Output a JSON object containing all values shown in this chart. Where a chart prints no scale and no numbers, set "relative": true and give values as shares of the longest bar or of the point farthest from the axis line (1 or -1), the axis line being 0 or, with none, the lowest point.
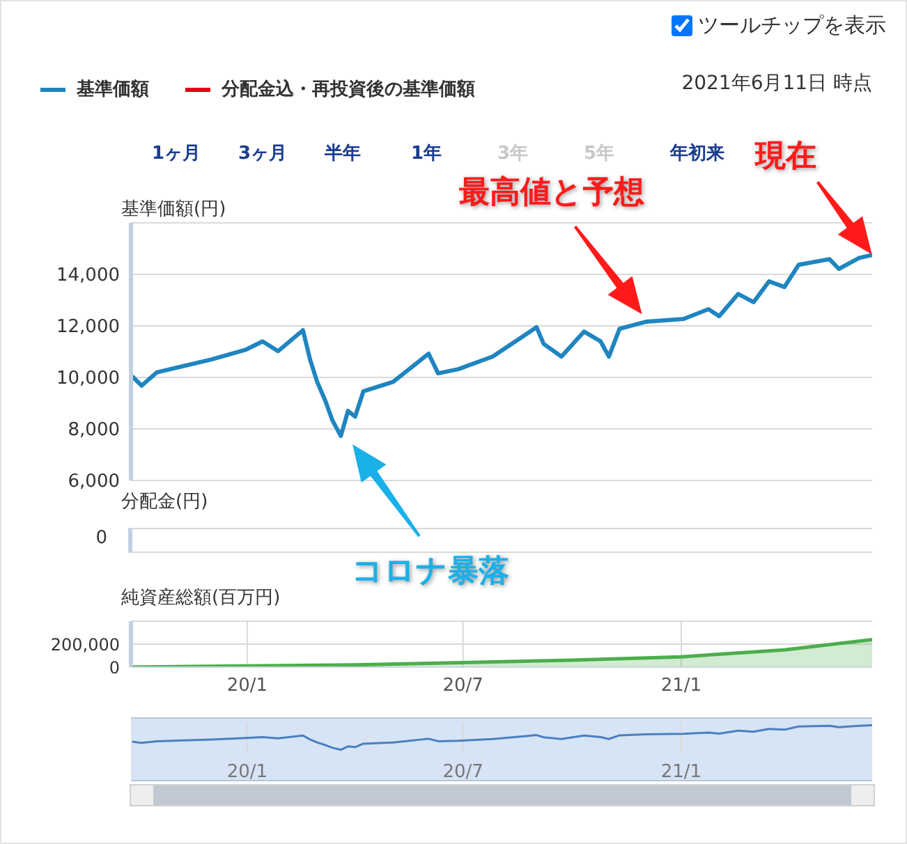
{
  "chart_data": [
    {
      "type": "line",
      "ylabel": "基準価額(円)",
      "legend": "top left",
      "grid": true,
      "tick_labels": "y",
      "x": [
        "2019-09-26",
        "2019-10-04",
        "2019-10-17",
        "2019-12-02",
        "2019-12-31",
        "2020-01-14",
        "2020-01-27",
        "2020-02-17",
        "2020-02-23",
        "2020-02-29",
        "2020-03-07",
        "2020-03-13",
        "2020-03-20",
        "2020-03-26",
        "2020-04-01",
        "2020-04-08",
        "2020-05-03",
        "2020-06-02",
        "2020-06-10",
        "2020-06-27",
        "2020-07-26",
        "2020-09-01",
        "2020-09-07",
        "2020-09-22",
        "2020-10-11",
        "2020-10-25",
        "2020-11-01",
        "2020-11-10",
        "2020-12-02",
        "2021-01-03",
        "2021-01-24",
        "2021-02-02",
        "2021-02-18",
        "2021-03-03",
        "2021-03-16",
        "2021-03-29",
        "2021-04-10",
        "2021-05-06",
        "2021-05-14",
        "2021-05-31",
        "2021-06-11"
      ],
      "series": [
        {
          "name": "基準価額",
          "color": "#1f85c0",
          "values": [
            10050,
            9680,
            10200,
            10700,
            11080,
            11400,
            11020,
            11830,
            10700,
            9830,
            9080,
            8320,
            7730,
            8700,
            8480,
            9460,
            9830,
            10920,
            10160,
            10320,
            10810,
            11950,
            11300,
            10810,
            11780,
            11400,
            10810,
            11890,
            12160,
            12270,
            12650,
            12380,
            13240,
            12920,
            13730,
            13510,
            14370,
            14590,
            14210,
            14640,
            14750
          ]
        },
        {
          "name": "分配金込・再投資後の基準価額",
          "color": "#e60012",
          "values": [
            null,
            null,
            null,
            null,
            null,
            null,
            null,
            null,
            null,
            null,
            null,
            null,
            null,
            null,
            null,
            null,
            null,
            null,
            null,
            null,
            null,
            null,
            null,
            null,
            null,
            null,
            null,
            null,
            null,
            null,
            null,
            null,
            null,
            null,
            null,
            null,
            null,
            null,
            null,
            null,
            null
          ]
        }
      ],
      "xlim": [
        "2019-09-25",
        "2021-06-11"
      ],
      "xticks": [
        {
          "value": "2020-01-01",
          "label": null
        },
        {
          "value": "2020-07-01",
          "label": null
        },
        {
          "value": "2021-01-01",
          "label": null
        }
      ],
      "ylim": [
        6000,
        16000
      ],
      "yticks": [
        {
          "value": 6000,
          "label": "6,000"
        },
        {
          "value": 8000,
          "label": "8,000"
        },
        {
          "value": 10000,
          "label": "10,000"
        },
        {
          "value": 12000,
          "label": "12,000"
        },
        {
          "value": 14000,
          "label": "14,000"
        },
        {
          "value": 16000,
          "label": null
        }
      ],
      "annotations": [
        "ツールチップを表示",
        "2021年6月11日 時点",
        "1ヶ月",
        "3ヶ月",
        "半年",
        "1年",
        "3年",
        "5年",
        "年初来",
        "現在",
        "最高値と予想",
        "コロナ暴落"
      ]
    },
    {
      "type": "other",
      "ylabel": "分配金(円)",
      "annotations": [
        "0"
      ]
    },
    {
      "type": "area",
      "ylabel": "純資産総額(百万円)",
      "grid": true,
      "color": "#4cae4c",
      "x": [
        "2019-09-26",
        "2020-01-01",
        "2020-04-01",
        "2020-07-01",
        "2020-10-01",
        "2021-01-01",
        "2021-03-29",
        "2021-06-11"
      ],
      "values": [
        0,
        10000,
        20000,
        40000,
        60000,
        90000,
        150000,
        240000
      ],
      "xlim": [
        "2019-09-25",
        "2021-06-11"
      ],
      "xticks": [
        {
          "value": "2020-01-01",
          "label": "20/1"
        },
        {
          "value": "2020-07-01",
          "label": "20/7"
        },
        {
          "value": "2021-01-01",
          "label": "21/1"
        }
      ],
      "ylim": [
        0,
        400000
      ],
      "yticks": [
        0,
        {
          "value": 200000,
          "label": "200,000"
        },
        {
          "value": 400000,
          "label": null
        }
      ]
    },
    {
      "type": "line",
      "relative": true,
      "tick_labels": "x",
      "grid": "x",
      "color": "#4a7fc1",
      "x": [
        "2019-09-26",
        "2019-10-04",
        "2019-10-17",
        "2019-12-02",
        "2019-12-31",
        "2020-01-14",
        "2020-01-27",
        "2020-02-17",
        "2020-02-23",
        "2020-02-29",
        "2020-03-07",
        "2020-03-13",
        "2020-03-20",
        "2020-03-26",
        "2020-04-01",
        "2020-04-08",
        "2020-05-03",
        "2020-06-02",
        "2020-06-10",
        "2020-06-27",
        "2020-07-26",
        "2020-09-01",
        "2020-09-07",
        "2020-09-22",
        "2020-10-11",
        "2020-10-25",
        "2020-11-01",
        "2020-11-10",
        "2020-12-02",
        "2021-01-03",
        "2021-01-24",
        "2021-02-02",
        "2021-02-18",
        "2021-03-03",
        "2021-03-16",
        "2021-03-29",
        "2021-04-10",
        "2021-05-06",
        "2021-05-14",
        "2021-05-31",
        "2021-06-11"
      ],
      "values": [
        0.33,
        0.28,
        0.35,
        0.42,
        0.48,
        0.52,
        0.47,
        0.58,
        0.42,
        0.3,
        0.19,
        0.08,
        0,
        0.14,
        0.11,
        0.25,
        0.3,
        0.45,
        0.35,
        0.37,
        0.44,
        0.6,
        0.51,
        0.44,
        0.58,
        0.52,
        0.44,
        0.59,
        0.63,
        0.65,
        0.7,
        0.66,
        0.78,
        0.74,
        0.85,
        0.82,
        0.95,
        0.98,
        0.92,
        0.98,
        1
      ],
      "xlim": [
        "2019-09-25",
        "2021-06-11"
      ],
      "xticks": [
        {
          "value": "2020-01-01",
          "label": "20/1"
        },
        {
          "value": "2020-07-01",
          "label": "20/7"
        },
        {
          "value": "2021-01-01",
          "label": "21/1"
        }
      ]
    }
  ]
}
